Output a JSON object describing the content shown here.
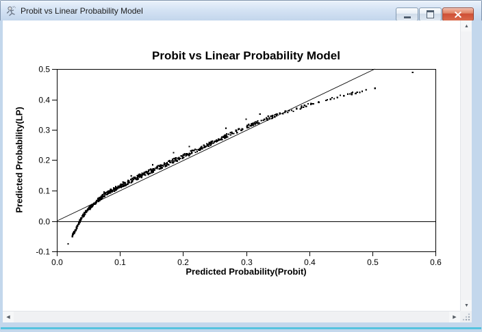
{
  "window": {
    "title": "Probit vs Linear Probability Model"
  },
  "icons": {
    "app": "stick-figure",
    "minimize": "horizontal-bar",
    "restore": "window-box",
    "close": "x-mark"
  },
  "scrollbar_icons": {
    "up": "▲",
    "down": "▼",
    "left": "◀",
    "right": "▶"
  },
  "chart_data": {
    "type": "scatter",
    "title": "Probit vs Linear Probability Model",
    "xlabel": "Predicted Probability(Probit)",
    "ylabel": "Predicted Probability(LP)",
    "xlim": [
      0.0,
      0.6
    ],
    "ylim": [
      -0.1,
      0.5
    ],
    "x_tick_values": [
      0.0,
      0.1,
      0.2,
      0.3,
      0.4,
      0.5,
      0.6
    ],
    "x_tick_labels": [
      "0.0",
      "0.1",
      "0.2",
      "0.3",
      "0.4",
      "0.5",
      "0.6"
    ],
    "y_tick_values": [
      0.5,
      0.4,
      0.3,
      0.2,
      0.1,
      0.0,
      -0.1
    ],
    "y_tick_labels": [
      "0.5",
      "0.4",
      "0.3",
      "0.2",
      "0.1",
      "0.0",
      "-0.1"
    ],
    "grid": false,
    "legend": "none",
    "marker": {
      "shape": "square",
      "size": 2.2,
      "color": "#000000"
    },
    "reference_lines": [
      {
        "name": "identity-line",
        "kind": "segment",
        "from": [
          0.0,
          0.0
        ],
        "to": [
          0.504,
          0.5
        ],
        "color": "#000000"
      },
      {
        "name": "zero-line",
        "kind": "horizontal",
        "y": 0.0,
        "color": "#000000"
      }
    ],
    "scatter": {
      "seed": 20240711,
      "trend_control_points": [
        [
          0.024,
          -0.05
        ],
        [
          0.028,
          -0.036
        ],
        [
          0.032,
          -0.02
        ],
        [
          0.036,
          -0.002
        ],
        [
          0.04,
          0.012
        ],
        [
          0.045,
          0.027
        ],
        [
          0.05,
          0.039
        ],
        [
          0.055,
          0.049
        ],
        [
          0.06,
          0.058
        ],
        [
          0.066,
          0.07
        ],
        [
          0.072,
          0.08
        ],
        [
          0.08,
          0.091
        ],
        [
          0.09,
          0.103
        ],
        [
          0.1,
          0.114
        ],
        [
          0.115,
          0.13
        ],
        [
          0.13,
          0.146
        ],
        [
          0.15,
          0.165
        ],
        [
          0.17,
          0.184
        ],
        [
          0.19,
          0.203
        ],
        [
          0.21,
          0.222
        ],
        [
          0.23,
          0.241
        ],
        [
          0.25,
          0.261
        ],
        [
          0.27,
          0.281
        ],
        [
          0.29,
          0.3
        ],
        [
          0.31,
          0.318
        ],
        [
          0.33,
          0.334
        ],
        [
          0.35,
          0.349
        ],
        [
          0.37,
          0.362
        ],
        [
          0.39,
          0.376
        ],
        [
          0.41,
          0.389
        ],
        [
          0.43,
          0.4
        ],
        [
          0.45,
          0.411
        ],
        [
          0.47,
          0.421
        ],
        [
          0.49,
          0.43
        ],
        [
          0.505,
          0.436
        ]
      ],
      "segments": [
        {
          "x0": 0.024,
          "x1": 0.036,
          "n": 40,
          "jitter": 0.0035
        },
        {
          "x0": 0.036,
          "x1": 0.05,
          "n": 46,
          "jitter": 0.0045
        },
        {
          "x0": 0.05,
          "x1": 0.066,
          "n": 48,
          "jitter": 0.005
        },
        {
          "x0": 0.066,
          "x1": 0.085,
          "n": 52,
          "jitter": 0.006
        },
        {
          "x0": 0.085,
          "x1": 0.11,
          "n": 60,
          "jitter": 0.0065
        },
        {
          "x0": 0.11,
          "x1": 0.14,
          "n": 64,
          "jitter": 0.007
        },
        {
          "x0": 0.14,
          "x1": 0.175,
          "n": 66,
          "jitter": 0.007
        },
        {
          "x0": 0.175,
          "x1": 0.215,
          "n": 62,
          "jitter": 0.007
        },
        {
          "x0": 0.215,
          "x1": 0.255,
          "n": 56,
          "jitter": 0.0065
        },
        {
          "x0": 0.255,
          "x1": 0.295,
          "n": 48,
          "jitter": 0.006
        },
        {
          "x0": 0.295,
          "x1": 0.335,
          "n": 38,
          "jitter": 0.0055
        },
        {
          "x0": 0.335,
          "x1": 0.38,
          "n": 26,
          "jitter": 0.005
        },
        {
          "x0": 0.38,
          "x1": 0.43,
          "n": 18,
          "jitter": 0.0045
        },
        {
          "x0": 0.43,
          "x1": 0.47,
          "n": 12,
          "jitter": 0.004
        },
        {
          "x0": 0.47,
          "x1": 0.505,
          "n": 8,
          "jitter": 0.0035
        }
      ],
      "isolated_points": [
        [
          0.018,
          -0.075
        ],
        [
          0.564,
          0.489
        ]
      ],
      "stray_points": [
        [
          0.075,
          0.095
        ],
        [
          0.105,
          0.128
        ],
        [
          0.118,
          0.148
        ],
        [
          0.152,
          0.185
        ],
        [
          0.185,
          0.225
        ],
        [
          0.21,
          0.245
        ],
        [
          0.268,
          0.305
        ],
        [
          0.3,
          0.335
        ],
        [
          0.322,
          0.352
        ],
        [
          0.335,
          0.345
        ]
      ]
    }
  }
}
